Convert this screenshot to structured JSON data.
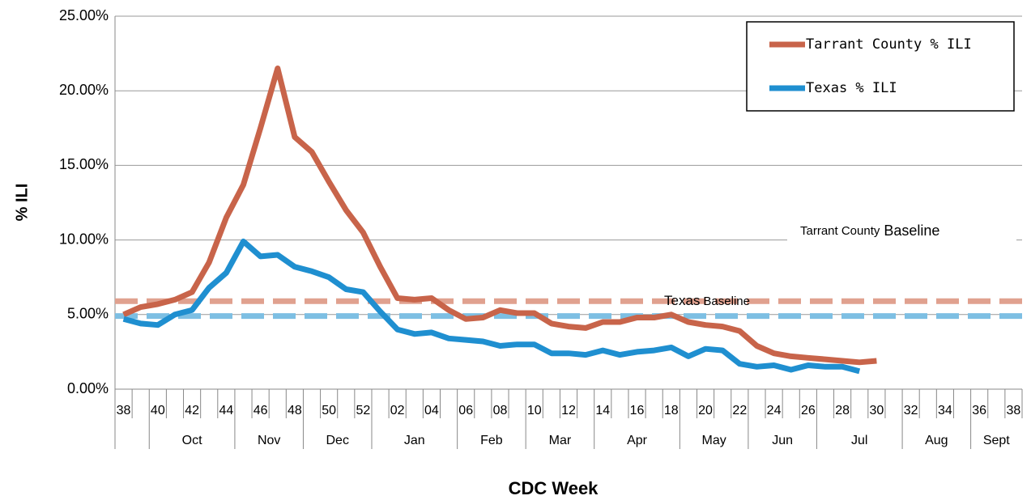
{
  "chart_data": {
    "type": "line",
    "xlabel": "CDC Week",
    "ylabel": "% ILI",
    "categories": [
      "38",
      null,
      "40",
      null,
      "42",
      null,
      "44",
      null,
      "46",
      null,
      "48",
      null,
      "50",
      null,
      "52",
      null,
      "02",
      null,
      "04",
      null,
      "06",
      null,
      "08",
      null,
      "10",
      null,
      "12",
      null,
      "14",
      null,
      "16",
      null,
      "18",
      null,
      "20",
      null,
      "22",
      null,
      "24",
      null,
      "26",
      null,
      "28",
      null,
      "30",
      null,
      "32",
      null,
      "34",
      null,
      "36",
      null,
      "38"
    ],
    "months": [
      "Oct",
      "Nov",
      "Dec",
      "Jan",
      "Feb",
      "Mar",
      "Apr",
      "May",
      "Jun",
      "Jul",
      "Aug",
      "Sept"
    ],
    "series": [
      {
        "name": "Tarrant County % ILI",
        "color": "#c8644a",
        "values": [
          5.0,
          5.5,
          5.7,
          6.0,
          6.5,
          8.5,
          11.5,
          13.7,
          17.5,
          21.5,
          16.9,
          15.9,
          13.9,
          12.0,
          10.5,
          8.2,
          6.1,
          6.0,
          6.1,
          5.3,
          4.7,
          4.8,
          5.3,
          5.1,
          5.1,
          4.4,
          4.2,
          4.1,
          4.5,
          4.5,
          4.8,
          4.8,
          5.0,
          4.5,
          4.3,
          4.2,
          3.9,
          2.9,
          2.4,
          2.2,
          2.1,
          2.0,
          1.9,
          1.8,
          1.9,
          null,
          null,
          null,
          null,
          null,
          null,
          null,
          null
        ]
      },
      {
        "name": "Texas % ILI",
        "color": "#1f8fd0",
        "values": [
          4.7,
          4.4,
          4.3,
          5.0,
          5.3,
          6.8,
          7.8,
          9.9,
          8.9,
          9.0,
          8.2,
          7.9,
          7.5,
          6.7,
          6.5,
          5.2,
          4.0,
          3.7,
          3.8,
          3.4,
          3.3,
          3.2,
          2.9,
          3.0,
          3.0,
          2.4,
          2.4,
          2.3,
          2.6,
          2.3,
          2.5,
          2.6,
          2.8,
          2.2,
          2.7,
          2.6,
          1.7,
          1.5,
          1.6,
          1.3,
          1.6,
          1.5,
          1.5,
          1.2,
          null,
          null,
          null,
          null,
          null,
          null,
          null,
          null,
          null
        ]
      }
    ],
    "baselines": [
      {
        "name": "Tarrant County",
        "suffix": "Baseline",
        "value": 5.9,
        "color": "#e0a18f"
      },
      {
        "name": "Texas",
        "suffix": "Baseline",
        "value": 4.9,
        "color": "#7dbfe3"
      }
    ],
    "ylim": [
      0,
      25
    ],
    "yticks": [
      {
        "value": 0,
        "label": "0.00%"
      },
      {
        "value": 5,
        "label": "5.00%"
      },
      {
        "value": 10,
        "label": "10.00%"
      },
      {
        "value": 15,
        "label": "15.00%"
      },
      {
        "value": 20,
        "label": "20.00%"
      },
      {
        "value": 25,
        "label": "25.00%"
      }
    ],
    "grid": true,
    "legend": "top-right"
  }
}
